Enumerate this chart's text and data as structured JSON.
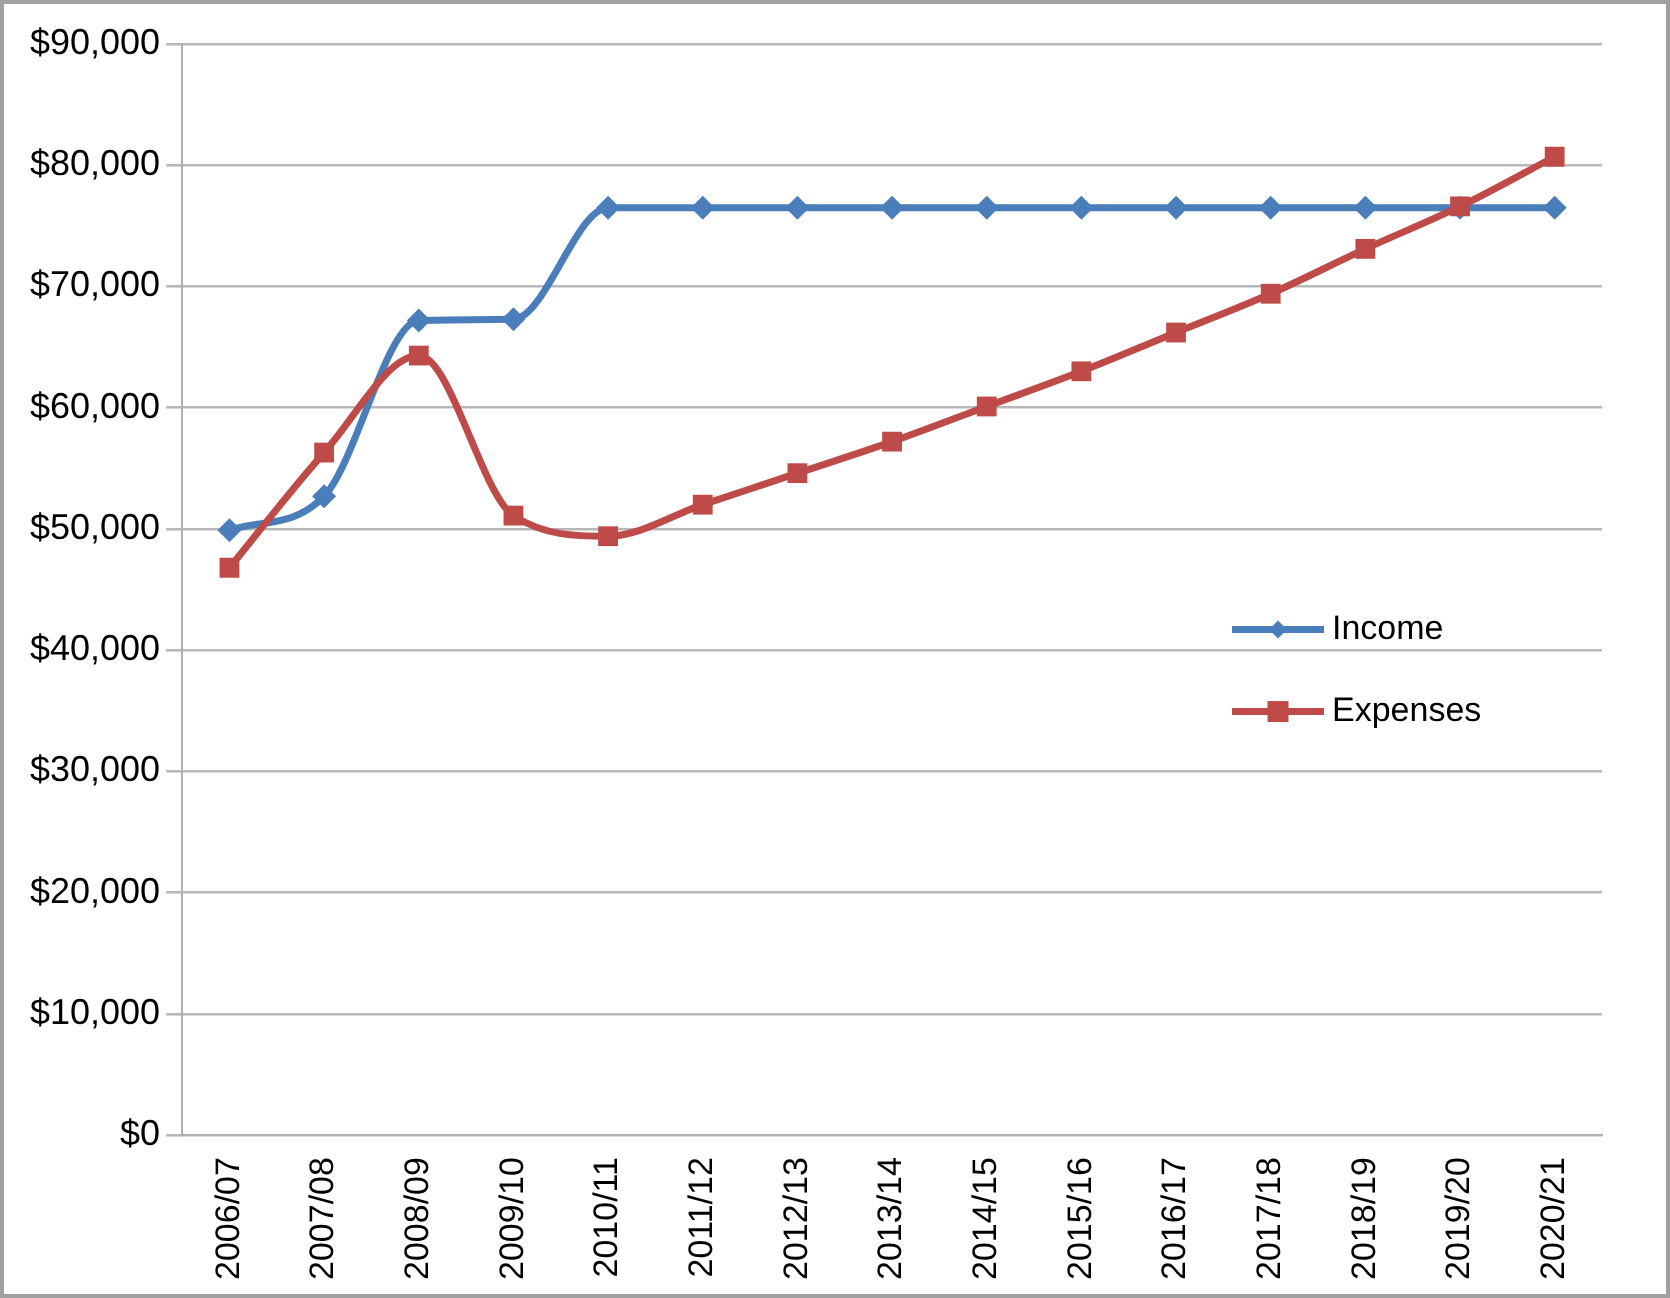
{
  "chart_data": {
    "type": "line",
    "categories": [
      "2006/07",
      "2007/08",
      "2008/09",
      "2009/10",
      "2010/11",
      "2011/12",
      "2012/13",
      "2013/14",
      "2014/15",
      "2015/16",
      "2016/17",
      "2017/18",
      "2018/19",
      "2019/20",
      "2020/21"
    ],
    "series": [
      {
        "name": "Income",
        "color": "#4a7ebb",
        "marker": "diamond",
        "values": [
          49900,
          52700,
          67200,
          67300,
          76500,
          76500,
          76500,
          76500,
          76500,
          76500,
          76500,
          76500,
          76500,
          76500,
          76500
        ]
      },
      {
        "name": "Expenses",
        "color": "#be4b48",
        "marker": "square",
        "values": [
          46800,
          56300,
          64300,
          51100,
          49400,
          52000,
          54600,
          57200,
          60100,
          63000,
          66200,
          69400,
          73100,
          76600,
          80700
        ]
      }
    ],
    "ylim": [
      0,
      90000
    ],
    "yticks": [
      {
        "value": 0,
        "label": "$0"
      },
      {
        "value": 10000,
        "label": "$10,000"
      },
      {
        "value": 20000,
        "label": "$20,000"
      },
      {
        "value": 30000,
        "label": "$30,000"
      },
      {
        "value": 40000,
        "label": "$40,000"
      },
      {
        "value": 50000,
        "label": "$50,000"
      },
      {
        "value": 60000,
        "label": "$60,000"
      },
      {
        "value": 70000,
        "label": "$70,000"
      },
      {
        "value": 80000,
        "label": "$80,000"
      },
      {
        "value": 90000,
        "label": "$90,000"
      }
    ],
    "grid": "y",
    "legend": "right",
    "line_style": "solid"
  }
}
